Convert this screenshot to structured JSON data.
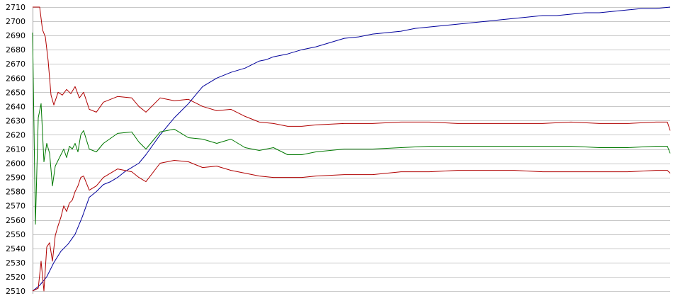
{
  "chart_data": {
    "type": "line",
    "title": "",
    "xlabel": "",
    "ylabel": "",
    "ylim": [
      2510,
      2710
    ],
    "yticks": [
      2510,
      2520,
      2530,
      2540,
      2550,
      2560,
      2570,
      2580,
      2590,
      2600,
      2610,
      2620,
      2630,
      2640,
      2650,
      2660,
      2670,
      2680,
      2690,
      2700,
      2710
    ],
    "xlim": [
      0,
      450
    ],
    "grid": true,
    "legend": "none",
    "series": [
      {
        "color": "#00009c",
        "x": [
          0,
          5,
          10,
          15,
          20,
          25,
          30,
          35,
          40,
          45,
          50,
          55,
          60,
          65,
          70,
          75,
          80,
          90,
          100,
          110,
          120,
          130,
          140,
          150,
          160,
          165,
          170,
          175,
          180,
          190,
          200,
          210,
          220,
          230,
          240,
          250,
          260,
          270,
          280,
          290,
          300,
          310,
          320,
          330,
          340,
          350,
          360,
          370,
          380,
          390,
          400,
          410,
          420,
          430,
          440,
          450
        ],
        "values": [
          2510,
          2514,
          2520,
          2530,
          2538,
          2543,
          2550,
          2562,
          2576,
          2580,
          2585,
          2587,
          2590,
          2594,
          2597,
          2600,
          2606,
          2620,
          2632,
          2642,
          2654,
          2660,
          2664,
          2667,
          2672,
          2673,
          2675,
          2676,
          2677,
          2680,
          2682,
          2685,
          2688,
          2689,
          2691,
          2692,
          2693,
          2695,
          2696,
          2697,
          2698,
          2699,
          2700,
          2701,
          2702,
          2703,
          2704,
          2704,
          2705,
          2706,
          2706,
          2707,
          2708,
          2709,
          2709,
          2710
        ]
      },
      {
        "color": "#b00000",
        "x": [
          0,
          5,
          7,
          9,
          11,
          13,
          15,
          18,
          21,
          24,
          27,
          30,
          33,
          36,
          40,
          45,
          50,
          60,
          70,
          75,
          80,
          90,
          100,
          110,
          120,
          130,
          140,
          150,
          160,
          170,
          180,
          190,
          200,
          220,
          240,
          260,
          280,
          300,
          320,
          340,
          360,
          380,
          400,
          420,
          440,
          448,
          450
        ],
        "values": [
          2710,
          2710,
          2694,
          2689,
          2672,
          2648,
          2641,
          2650,
          2648,
          2652,
          2649,
          2654,
          2646,
          2650,
          2638,
          2636,
          2643,
          2647,
          2646,
          2640,
          2636,
          2646,
          2644,
          2645,
          2640,
          2637,
          2638,
          2633,
          2629,
          2628,
          2626,
          2626,
          2627,
          2628,
          2628,
          2629,
          2629,
          2628,
          2628,
          2628,
          2628,
          2629,
          2628,
          2628,
          2629,
          2629,
          2623
        ]
      },
      {
        "color": "#007800",
        "x": [
          0,
          2,
          4,
          6,
          8,
          10,
          12,
          14,
          16,
          18,
          20,
          22,
          24,
          26,
          28,
          30,
          32,
          34,
          36,
          40,
          45,
          50,
          60,
          70,
          75,
          80,
          90,
          100,
          110,
          120,
          130,
          140,
          150,
          160,
          170,
          180,
          190,
          200,
          220,
          240,
          260,
          280,
          300,
          320,
          340,
          360,
          380,
          400,
          420,
          440,
          448,
          450
        ],
        "values": [
          2692,
          2557,
          2632,
          2642,
          2601,
          2614,
          2607,
          2584,
          2598,
          2602,
          2606,
          2610,
          2604,
          2612,
          2610,
          2614,
          2608,
          2620,
          2623,
          2610,
          2608,
          2614,
          2621,
          2622,
          2615,
          2610,
          2622,
          2624,
          2618,
          2617,
          2614,
          2617,
          2611,
          2609,
          2611,
          2606,
          2606,
          2608,
          2610,
          2610,
          2611,
          2612,
          2612,
          2612,
          2612,
          2612,
          2612,
          2611,
          2611,
          2612,
          2612,
          2607
        ]
      },
      {
        "color": "#b00000",
        "x": [
          0,
          4,
          6,
          8,
          10,
          12,
          14,
          16,
          18,
          20,
          22,
          24,
          26,
          28,
          30,
          32,
          34,
          36,
          40,
          45,
          50,
          60,
          70,
          75,
          80,
          90,
          100,
          110,
          120,
          130,
          140,
          150,
          160,
          170,
          180,
          190,
          200,
          220,
          240,
          260,
          280,
          300,
          320,
          340,
          360,
          380,
          400,
          420,
          440,
          448,
          450
        ],
        "values": [
          2510,
          2512,
          2531,
          2510,
          2541,
          2544,
          2531,
          2549,
          2556,
          2562,
          2570,
          2566,
          2572,
          2574,
          2580,
          2584,
          2590,
          2591,
          2581,
          2584,
          2590,
          2596,
          2594,
          2590,
          2587,
          2600,
          2602,
          2601,
          2597,
          2598,
          2595,
          2593,
          2591,
          2590,
          2590,
          2590,
          2591,
          2592,
          2592,
          2594,
          2594,
          2595,
          2595,
          2595,
          2594,
          2594,
          2594,
          2594,
          2595,
          2595,
          2593
        ]
      }
    ]
  }
}
